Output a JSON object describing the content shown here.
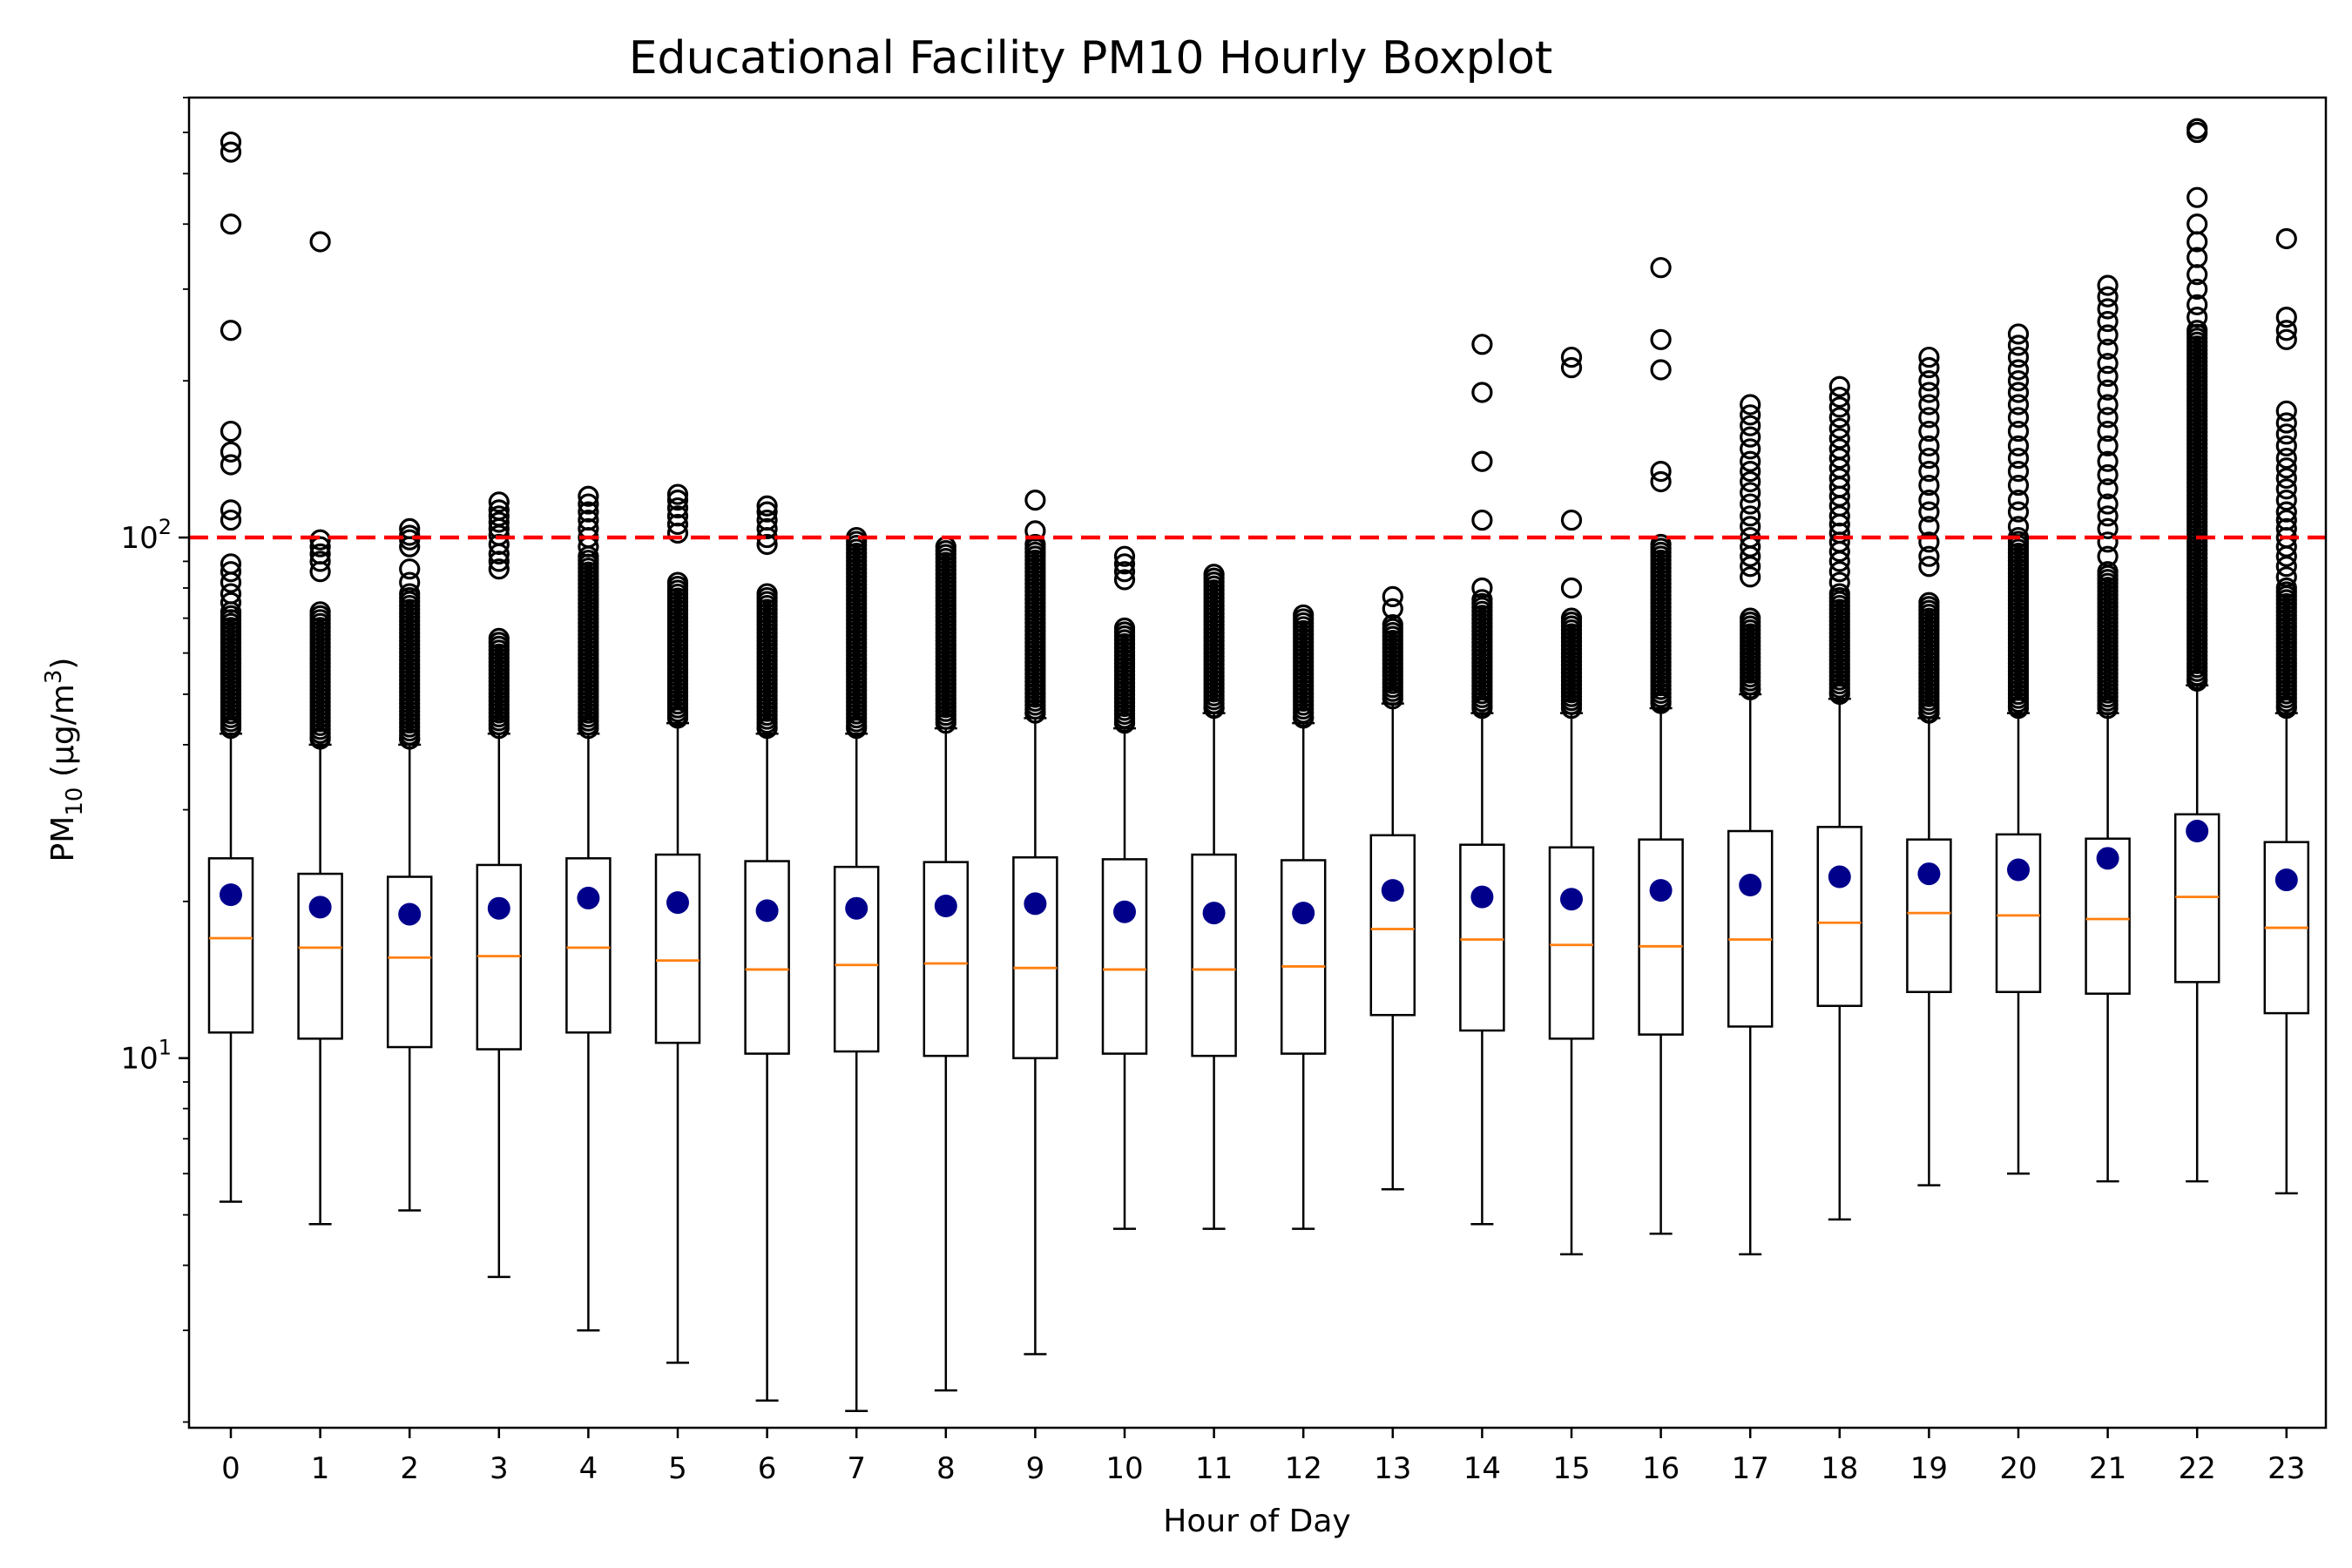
{
  "chart_data": {
    "type": "boxplot",
    "title": "Educational Facility PM10 Hourly Boxplot",
    "xlabel": "Hour of Day",
    "ylabel": {
      "base": "PM",
      "subscript": "10",
      "unit_prefix": " (μg/m",
      "unit_superscript": "3",
      "unit_suffix": ")"
    },
    "yscale": "log",
    "ylim": [
      1.95,
      700
    ],
    "yticks": [
      {
        "value": 10,
        "base": "10",
        "exponent": "1"
      },
      {
        "value": 100,
        "base": "10",
        "exponent": "2"
      }
    ],
    "reference_line": {
      "value": 100,
      "style": "dashed",
      "color": "#ff0000"
    },
    "colors": {
      "box": "#000000",
      "median": "#ff7f0e",
      "mean": "#00008b",
      "outlier_edge": "#000000",
      "reference": "#ff0000"
    },
    "categories": [
      "0",
      "1",
      "2",
      "3",
      "4",
      "5",
      "6",
      "7",
      "8",
      "9",
      "10",
      "11",
      "12",
      "13",
      "14",
      "15",
      "16",
      "17",
      "18",
      "19",
      "20",
      "21",
      "22",
      "23"
    ],
    "boxes": [
      {
        "hour": "0",
        "whisker_low": 5.3,
        "q1": 11.2,
        "median": 17.0,
        "q3": 24.2,
        "whisker_high": 42,
        "mean": 20.6,
        "outliers_dense": [
          43,
          72
        ],
        "outliers": [
          75,
          78,
          82,
          86,
          89,
          108,
          113,
          138,
          146,
          160,
          250,
          400,
          550,
          575
        ]
      },
      {
        "hour": "1",
        "whisker_low": 4.8,
        "q1": 10.9,
        "median": 16.3,
        "q3": 22.6,
        "whisker_high": 40,
        "mean": 19.5,
        "outliers_dense": [
          41,
          72
        ],
        "outliers": [
          86,
          90,
          93,
          96,
          99,
          370
        ]
      },
      {
        "hour": "2",
        "whisker_low": 5.1,
        "q1": 10.5,
        "median": 15.6,
        "q3": 22.3,
        "whisker_high": 40,
        "mean": 18.9,
        "outliers_dense": [
          41,
          78
        ],
        "outliers": [
          82,
          87,
          96,
          99,
          101,
          104
        ]
      },
      {
        "hour": "3",
        "whisker_low": 3.8,
        "q1": 10.4,
        "median": 15.7,
        "q3": 23.5,
        "whisker_high": 42,
        "mean": 19.4,
        "outliers_dense": [
          43,
          64
        ],
        "outliers": [
          87,
          90,
          93,
          97,
          101,
          104,
          107,
          110,
          113,
          117
        ]
      },
      {
        "hour": "4",
        "whisker_low": 3.0,
        "q1": 11.2,
        "median": 16.3,
        "q3": 24.2,
        "whisker_high": 42,
        "mean": 20.3,
        "outliers_dense": [
          43,
          92
        ],
        "outliers": [
          96,
          100,
          104,
          108,
          112,
          116,
          120
        ]
      },
      {
        "hour": "5",
        "whisker_low": 2.6,
        "q1": 10.7,
        "median": 15.4,
        "q3": 24.6,
        "whisker_high": 44,
        "mean": 19.9,
        "outliers_dense": [
          45,
          82
        ],
        "outliers": [
          102,
          106,
          110,
          114,
          118,
          121
        ]
      },
      {
        "hour": "6",
        "whisker_low": 2.2,
        "q1": 10.2,
        "median": 14.8,
        "q3": 23.9,
        "whisker_high": 42,
        "mean": 19.2,
        "outliers_dense": [
          43,
          78
        ],
        "outliers": [
          97,
          100,
          104,
          108,
          112,
          115
        ]
      },
      {
        "hour": "7",
        "whisker_low": 2.1,
        "q1": 10.3,
        "median": 15.1,
        "q3": 23.3,
        "whisker_high": 42,
        "mean": 19.4,
        "outliers_dense": [
          43,
          100
        ]
      },
      {
        "hour": "8",
        "whisker_low": 2.3,
        "q1": 10.1,
        "median": 15.2,
        "q3": 23.8,
        "whisker_high": 43,
        "mean": 19.6,
        "outliers_dense": [
          44,
          96
        ]
      },
      {
        "hour": "9",
        "whisker_low": 2.7,
        "q1": 10.0,
        "median": 14.9,
        "q3": 24.3,
        "whisker_high": 45,
        "mean": 19.8,
        "outliers_dense": [
          46,
          97
        ],
        "outliers": [
          103,
          118
        ]
      },
      {
        "hour": "10",
        "whisker_low": 4.7,
        "q1": 10.2,
        "median": 14.8,
        "q3": 24.1,
        "whisker_high": 43,
        "mean": 19.1,
        "outliers_dense": [
          44,
          67
        ],
        "outliers": [
          83,
          86,
          89,
          92
        ]
      },
      {
        "hour": "11",
        "whisker_low": 4.7,
        "q1": 10.1,
        "median": 14.8,
        "q3": 24.6,
        "whisker_high": 46,
        "mean": 19.0,
        "outliers_dense": [
          47,
          85
        ]
      },
      {
        "hour": "12",
        "whisker_low": 4.7,
        "q1": 10.2,
        "median": 15.0,
        "q3": 24.0,
        "whisker_high": 44,
        "mean": 19.0,
        "outliers_dense": [
          45,
          71
        ]
      },
      {
        "hour": "13",
        "whisker_low": 5.6,
        "q1": 12.1,
        "median": 17.7,
        "q3": 26.8,
        "whisker_high": 48,
        "mean": 21.0,
        "outliers_dense": [
          49,
          68
        ],
        "outliers": [
          73,
          77
        ]
      },
      {
        "hour": "14",
        "whisker_low": 4.8,
        "q1": 11.3,
        "median": 16.9,
        "q3": 25.7,
        "whisker_high": 46,
        "mean": 20.4,
        "outliers_dense": [
          47,
          76
        ],
        "outliers": [
          80,
          108,
          140,
          190,
          235
        ]
      },
      {
        "hour": "15",
        "whisker_low": 4.2,
        "q1": 10.9,
        "median": 16.5,
        "q3": 25.4,
        "whisker_high": 46,
        "mean": 20.2,
        "outliers_dense": [
          47,
          70
        ],
        "outliers": [
          80,
          108,
          212,
          222
        ]
      },
      {
        "hour": "16",
        "whisker_low": 4.6,
        "q1": 11.1,
        "median": 16.4,
        "q3": 26.3,
        "whisker_high": 47,
        "mean": 21.0,
        "outliers_dense": [
          48,
          97
        ],
        "outliers": [
          128,
          134,
          210,
          240,
          330
        ]
      },
      {
        "hour": "17",
        "whisker_low": 4.2,
        "q1": 11.5,
        "median": 16.9,
        "q3": 27.3,
        "whisker_high": 50,
        "mean": 21.5,
        "outliers_dense": [
          51,
          70
        ],
        "outliers": [
          84,
          88,
          92,
          96,
          100,
          105,
          110,
          116,
          122,
          128,
          134,
          140,
          148,
          156,
          164,
          172,
          180
        ]
      },
      {
        "hour": "18",
        "whisker_low": 4.9,
        "q1": 12.6,
        "median": 18.2,
        "q3": 27.8,
        "whisker_high": 49,
        "mean": 22.3,
        "outliers_dense": [
          50,
          78
        ],
        "outliers": [
          82,
          86,
          90,
          94,
          98,
          102,
          106,
          110,
          115,
          120,
          125,
          130,
          136,
          142,
          148,
          155,
          162,
          170,
          178,
          186,
          195
        ]
      },
      {
        "hour": "19",
        "whisker_low": 5.7,
        "q1": 13.4,
        "median": 19.0,
        "q3": 26.3,
        "whisker_high": 45,
        "mean": 22.6,
        "outliers_dense": [
          46,
          75
        ],
        "outliers": [
          88,
          92,
          98,
          105,
          112,
          118,
          126,
          134,
          142,
          150,
          160,
          170,
          180,
          190,
          200,
          212,
          222
        ]
      },
      {
        "hour": "20",
        "whisker_low": 6.0,
        "q1": 13.4,
        "median": 18.8,
        "q3": 26.9,
        "whisker_high": 46,
        "mean": 23.0,
        "outliers_dense": [
          47,
          100
        ],
        "outliers": [
          105,
          112,
          118,
          126,
          134,
          142,
          150,
          160,
          170,
          180,
          190,
          200,
          210,
          222,
          234,
          246
        ]
      },
      {
        "hour": "21",
        "whisker_low": 5.8,
        "q1": 13.3,
        "median": 18.5,
        "q3": 26.4,
        "whisker_high": 46,
        "mean": 24.2,
        "outliers_dense": [
          47,
          86
        ],
        "outliers": [
          92,
          98,
          104,
          110,
          116,
          124,
          132,
          140,
          150,
          160,
          170,
          180,
          192,
          204,
          216,
          230,
          245,
          260,
          275,
          290,
          305
        ]
      },
      {
        "hour": "22",
        "whisker_low": 5.8,
        "q1": 14.0,
        "median": 20.4,
        "q3": 29.4,
        "whisker_high": 52,
        "mean": 27.3,
        "outliers_dense": [
          53,
          250
        ],
        "outliers": [
          265,
          280,
          300,
          320,
          345,
          370,
          400,
          450,
          600,
          610
        ]
      },
      {
        "hour": "23",
        "whisker_low": 5.5,
        "q1": 12.2,
        "median": 17.8,
        "q3": 26.0,
        "whisker_high": 46,
        "mean": 22.0,
        "outliers_dense": [
          47,
          80
        ],
        "outliers": [
          84,
          88,
          92,
          96,
          100,
          104,
          108,
          112,
          118,
          124,
          130,
          136,
          142,
          150,
          158,
          166,
          175,
          240,
          250,
          265,
          375
        ]
      }
    ]
  }
}
